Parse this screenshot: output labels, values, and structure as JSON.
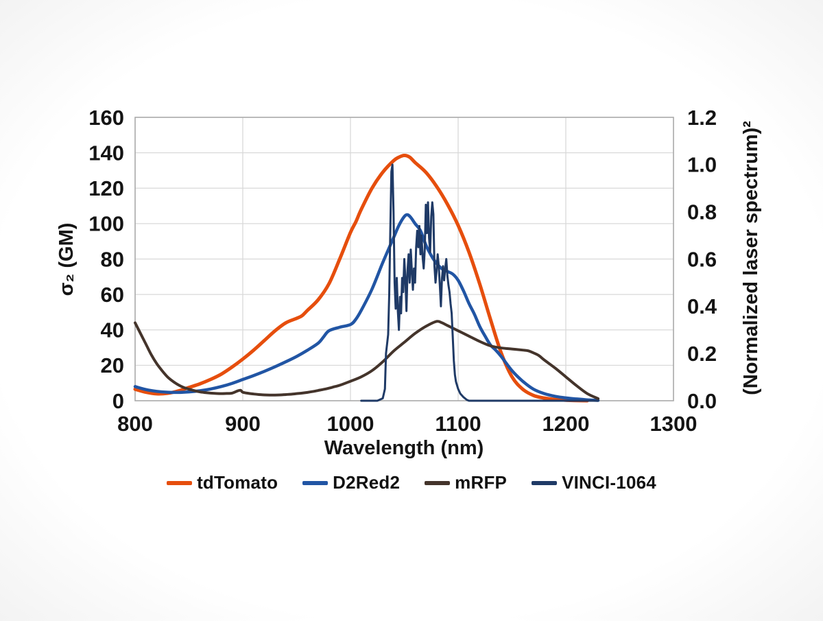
{
  "chart_data": {
    "type": "line",
    "title": "",
    "xlabel": "Wavelength (nm)",
    "ylabel_left": "σ₂ (GM)",
    "ylabel_right": "(Normalized laser spectrum)²",
    "x_range": [
      800,
      1300
    ],
    "x_ticks": [
      800,
      900,
      1000,
      1100,
      1200,
      1300
    ],
    "y_left_range": [
      0,
      160
    ],
    "y_left_ticks": [
      0,
      20,
      40,
      60,
      80,
      100,
      120,
      140,
      160
    ],
    "y_right_range": [
      0,
      1.2
    ],
    "y_right_tick_labels": [
      "0.0",
      "0.2",
      "0.4",
      "0.6",
      "0.8",
      "1.0",
      "1.2"
    ],
    "grid": true,
    "legend_position": "bottom",
    "series": [
      {
        "name": "tdTomato",
        "color": "#e64e0d",
        "axis": "left",
        "smooth": true,
        "stroke_width": 5,
        "points": [
          [
            800,
            6.5
          ],
          [
            810,
            4.8
          ],
          [
            820,
            3.9
          ],
          [
            830,
            4.2
          ],
          [
            840,
            5.5
          ],
          [
            850,
            7.5
          ],
          [
            860,
            9.5
          ],
          [
            870,
            12
          ],
          [
            880,
            15
          ],
          [
            890,
            19
          ],
          [
            900,
            23.5
          ],
          [
            910,
            28.5
          ],
          [
            920,
            34
          ],
          [
            930,
            39.5
          ],
          [
            940,
            44
          ],
          [
            950,
            46.5
          ],
          [
            955,
            48
          ],
          [
            960,
            51
          ],
          [
            970,
            57
          ],
          [
            980,
            66
          ],
          [
            990,
            80
          ],
          [
            1000,
            95
          ],
          [
            1005,
            101
          ],
          [
            1010,
            108
          ],
          [
            1020,
            120
          ],
          [
            1030,
            129
          ],
          [
            1040,
            135.5
          ],
          [
            1045,
            137.5
          ],
          [
            1050,
            138.5
          ],
          [
            1055,
            137.5
          ],
          [
            1060,
            134.5
          ],
          [
            1070,
            129
          ],
          [
            1080,
            121
          ],
          [
            1090,
            111
          ],
          [
            1100,
            99
          ],
          [
            1110,
            84
          ],
          [
            1120,
            66
          ],
          [
            1130,
            46
          ],
          [
            1140,
            27
          ],
          [
            1150,
            13.5
          ],
          [
            1160,
            6.5
          ],
          [
            1170,
            3
          ],
          [
            1180,
            1.5
          ],
          [
            1190,
            0.7
          ],
          [
            1200,
            0.3
          ],
          [
            1210,
            0.1
          ],
          [
            1220,
            0
          ]
        ]
      },
      {
        "name": "D2Red2",
        "color": "#2155a4",
        "axis": "left",
        "smooth": true,
        "stroke_width": 4.5,
        "points": [
          [
            800,
            8
          ],
          [
            810,
            6.3
          ],
          [
            820,
            5.3
          ],
          [
            830,
            4.8
          ],
          [
            840,
            4.7
          ],
          [
            850,
            5
          ],
          [
            860,
            5.6
          ],
          [
            870,
            6.6
          ],
          [
            880,
            8
          ],
          [
            890,
            9.8
          ],
          [
            900,
            12
          ],
          [
            910,
            14.2
          ],
          [
            920,
            16.6
          ],
          [
            930,
            19.2
          ],
          [
            940,
            22
          ],
          [
            950,
            25
          ],
          [
            960,
            28.5
          ],
          [
            970,
            32.5
          ],
          [
            975,
            36
          ],
          [
            980,
            39.5
          ],
          [
            990,
            41.5
          ],
          [
            1000,
            43
          ],
          [
            1005,
            46
          ],
          [
            1010,
            51
          ],
          [
            1020,
            63
          ],
          [
            1030,
            78
          ],
          [
            1040,
            92
          ],
          [
            1045,
            99
          ],
          [
            1050,
            104
          ],
          [
            1053,
            105
          ],
          [
            1056,
            103.5
          ],
          [
            1060,
            100
          ],
          [
            1065,
            96
          ],
          [
            1070,
            88
          ],
          [
            1075,
            82
          ],
          [
            1080,
            77.5
          ],
          [
            1085,
            74.5
          ],
          [
            1090,
            73
          ],
          [
            1095,
            71.5
          ],
          [
            1100,
            68
          ],
          [
            1105,
            62
          ],
          [
            1110,
            55
          ],
          [
            1115,
            49
          ],
          [
            1120,
            42
          ],
          [
            1125,
            36.5
          ],
          [
            1130,
            31.5
          ],
          [
            1135,
            28.5
          ],
          [
            1140,
            25
          ],
          [
            1150,
            17
          ],
          [
            1160,
            11
          ],
          [
            1170,
            6.5
          ],
          [
            1180,
            4
          ],
          [
            1190,
            2.5
          ],
          [
            1200,
            1.6
          ],
          [
            1210,
            1
          ],
          [
            1220,
            0.5
          ],
          [
            1230,
            0.2
          ]
        ]
      },
      {
        "name": "mRFP",
        "color": "#44342b",
        "axis": "left",
        "smooth": true,
        "stroke_width": 4,
        "points": [
          [
            800,
            44
          ],
          [
            805,
            38
          ],
          [
            810,
            32
          ],
          [
            815,
            26
          ],
          [
            820,
            21
          ],
          [
            825,
            17
          ],
          [
            830,
            13.5
          ],
          [
            835,
            11
          ],
          [
            840,
            9
          ],
          [
            845,
            7.5
          ],
          [
            850,
            6.5
          ],
          [
            855,
            5.7
          ],
          [
            860,
            5
          ],
          [
            865,
            4.6
          ],
          [
            870,
            4.3
          ],
          [
            875,
            4.1
          ],
          [
            880,
            4
          ],
          [
            885,
            4.1
          ],
          [
            890,
            4.3
          ],
          [
            895,
            5.5
          ],
          [
            898,
            5.9
          ],
          [
            900,
            4.8
          ],
          [
            905,
            4.2
          ],
          [
            910,
            3.8
          ],
          [
            915,
            3.5
          ],
          [
            920,
            3.3
          ],
          [
            925,
            3.2
          ],
          [
            930,
            3.2
          ],
          [
            935,
            3.3
          ],
          [
            940,
            3.5
          ],
          [
            945,
            3.7
          ],
          [
            950,
            4
          ],
          [
            955,
            4.3
          ],
          [
            960,
            4.7
          ],
          [
            965,
            5.2
          ],
          [
            970,
            5.8
          ],
          [
            975,
            6.4
          ],
          [
            980,
            7.1
          ],
          [
            985,
            7.9
          ],
          [
            990,
            8.7
          ],
          [
            1000,
            11
          ],
          [
            1010,
            13.5
          ],
          [
            1020,
            17
          ],
          [
            1030,
            22
          ],
          [
            1040,
            28
          ],
          [
            1050,
            33
          ],
          [
            1060,
            38
          ],
          [
            1070,
            42
          ],
          [
            1080,
            44.8
          ],
          [
            1085,
            44
          ],
          [
            1090,
            42.5
          ],
          [
            1100,
            39.5
          ],
          [
            1110,
            36.5
          ],
          [
            1120,
            33.5
          ],
          [
            1130,
            31
          ],
          [
            1140,
            29.8
          ],
          [
            1150,
            29.2
          ],
          [
            1160,
            28.6
          ],
          [
            1165,
            28.2
          ],
          [
            1170,
            27
          ],
          [
            1175,
            25.5
          ],
          [
            1180,
            23
          ],
          [
            1190,
            18.5
          ],
          [
            1200,
            13.5
          ],
          [
            1210,
            8.5
          ],
          [
            1220,
            4
          ],
          [
            1230,
            1.2
          ]
        ]
      },
      {
        "name": "VINCI-1064",
        "color": "#1f3a66",
        "axis": "right",
        "smooth": false,
        "stroke_width": 3,
        "points": [
          [
            1010,
            0
          ],
          [
            1025,
            0
          ],
          [
            1030,
            0.01
          ],
          [
            1032,
            0.05
          ],
          [
            1033,
            0.2
          ],
          [
            1034,
            0.24
          ],
          [
            1035,
            0.28
          ],
          [
            1036,
            0.45
          ],
          [
            1037,
            0.72
          ],
          [
            1038,
            0.97
          ],
          [
            1039,
            1.0
          ],
          [
            1040,
            0.8
          ],
          [
            1041,
            0.5
          ],
          [
            1042,
            0.39
          ],
          [
            1043,
            0.52
          ],
          [
            1044,
            0.38
          ],
          [
            1045,
            0.3
          ],
          [
            1046,
            0.44
          ],
          [
            1047,
            0.37
          ],
          [
            1048,
            0.52
          ],
          [
            1049,
            0.46
          ],
          [
            1050,
            0.6
          ],
          [
            1051,
            0.52
          ],
          [
            1052,
            0.38
          ],
          [
            1053,
            0.55
          ],
          [
            1054,
            0.62
          ],
          [
            1055,
            0.5
          ],
          [
            1056,
            0.64
          ],
          [
            1057,
            0.55
          ],
          [
            1058,
            0.47
          ],
          [
            1059,
            0.56
          ],
          [
            1060,
            0.5
          ],
          [
            1061,
            0.65
          ],
          [
            1062,
            0.72
          ],
          [
            1063,
            0.65
          ],
          [
            1064,
            0.74
          ],
          [
            1065,
            0.62
          ],
          [
            1066,
            0.7
          ],
          [
            1067,
            0.61
          ],
          [
            1068,
            0.56
          ],
          [
            1069,
            0.64
          ],
          [
            1070,
            0.83
          ],
          [
            1071,
            0.71
          ],
          [
            1072,
            0.84
          ],
          [
            1073,
            0.69
          ],
          [
            1074,
            0.63
          ],
          [
            1075,
            0.78
          ],
          [
            1076,
            0.84
          ],
          [
            1077,
            0.79
          ],
          [
            1078,
            0.57
          ],
          [
            1079,
            0.5
          ],
          [
            1080,
            0.55
          ],
          [
            1081,
            0.62
          ],
          [
            1082,
            0.57
          ],
          [
            1083,
            0.49
          ],
          [
            1084,
            0.4
          ],
          [
            1085,
            0.52
          ],
          [
            1086,
            0.57
          ],
          [
            1087,
            0.51
          ],
          [
            1088,
            0.56
          ],
          [
            1089,
            0.6
          ],
          [
            1090,
            0.53
          ],
          [
            1091,
            0.49
          ],
          [
            1092,
            0.46
          ],
          [
            1093,
            0.41
          ],
          [
            1094,
            0.37
          ],
          [
            1095,
            0.27
          ],
          [
            1096,
            0.17
          ],
          [
            1097,
            0.11
          ],
          [
            1098,
            0.08
          ],
          [
            1100,
            0.05
          ],
          [
            1102,
            0.03
          ],
          [
            1105,
            0.015
          ],
          [
            1108,
            0.004
          ],
          [
            1110,
            0
          ],
          [
            1230,
            0
          ]
        ]
      }
    ]
  }
}
